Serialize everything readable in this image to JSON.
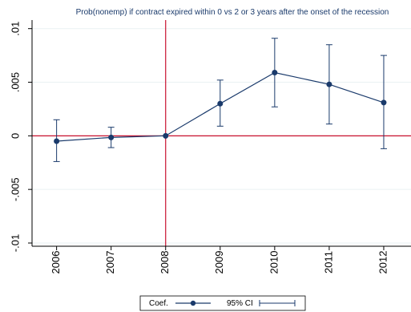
{
  "chart_data": {
    "type": "line",
    "title": "Prob(nonemp) if contract expired within 0 vs 2 or 3 years after the onset of the recession",
    "xlabel": "",
    "ylabel": "",
    "x": [
      2006,
      2007,
      2008,
      2009,
      2010,
      2011,
      2012
    ],
    "x_tick_labels": [
      "2006",
      "2007",
      "2008",
      "2009",
      "2010",
      "2011",
      "2012"
    ],
    "y_ticks": [
      -0.01,
      -0.005,
      0,
      0.005,
      0.01
    ],
    "y_tick_labels": [
      "-.01",
      "-.005",
      "0",
      ".005",
      ".01"
    ],
    "ylim": [
      -0.0103,
      0.0108
    ],
    "xlim": [
      2005.55,
      2012.5
    ],
    "grid": "horizontal",
    "reference_lines": {
      "vertical_x": 2008,
      "horizontal_y": 0,
      "color": "#c8102e"
    },
    "series": [
      {
        "name": "Coef.",
        "color": "#1a3a6b",
        "values": [
          -0.0005,
          -0.00015,
          0.0,
          0.003,
          0.0059,
          0.0048,
          0.0031
        ]
      }
    ],
    "confidence_interval": {
      "name": "95% CI",
      "color": "#1a3a6b",
      "lower": [
        -0.0024,
        -0.0011,
        0.0,
        0.0009,
        0.0027,
        0.0011,
        -0.0012
      ],
      "upper": [
        0.0015,
        0.0008,
        0.0,
        0.0052,
        0.0091,
        0.0085,
        0.0075
      ]
    },
    "legend": {
      "placement": "bottom",
      "entries": [
        "Coef.",
        "95% CI"
      ]
    }
  }
}
